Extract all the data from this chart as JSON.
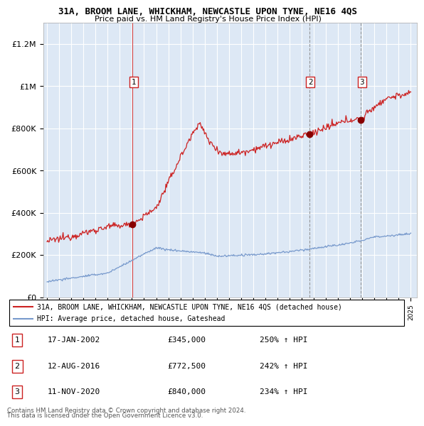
{
  "title": "31A, BROOM LANE, WHICKHAM, NEWCASTLE UPON TYNE, NE16 4QS",
  "subtitle": "Price paid vs. HM Land Registry's House Price Index (HPI)",
  "ylim": [
    0,
    1300000
  ],
  "yticks": [
    0,
    200000,
    400000,
    600000,
    800000,
    1000000,
    1200000
  ],
  "ytick_labels": [
    "£0",
    "£200K",
    "£400K",
    "£600K",
    "£800K",
    "£1M",
    "£1.2M"
  ],
  "x_start_year": 1995,
  "x_end_year": 2025,
  "line_color_red": "#cc2222",
  "line_color_blue": "#7799cc",
  "bg_color": "#dde8f5",
  "purchases": [
    {
      "date_num": 2002.05,
      "price": 345000,
      "label": "1",
      "vline_color": "#cc2222",
      "vline_style": "solid"
    },
    {
      "date_num": 2016.62,
      "price": 772500,
      "label": "2",
      "vline_color": "#888888",
      "vline_style": "dashed"
    },
    {
      "date_num": 2020.87,
      "price": 840000,
      "label": "3",
      "vline_color": "#888888",
      "vline_style": "dashed"
    }
  ],
  "legend_entries": [
    "31A, BROOM LANE, WHICKHAM, NEWCASTLE UPON TYNE, NE16 4QS (detached house)",
    "HPI: Average price, detached house, Gateshead"
  ],
  "table_rows": [
    {
      "num": "1",
      "date": "17-JAN-2002",
      "price": "£345,000",
      "hpi": "250% ↑ HPI"
    },
    {
      "num": "2",
      "date": "12-AUG-2016",
      "price": "£772,500",
      "hpi": "242% ↑ HPI"
    },
    {
      "num": "3",
      "date": "11-NOV-2020",
      "price": "£840,000",
      "hpi": "234% ↑ HPI"
    }
  ],
  "footnote1": "Contains HM Land Registry data © Crown copyright and database right 2024.",
  "footnote2": "This data is licensed under the Open Government Licence v3.0."
}
